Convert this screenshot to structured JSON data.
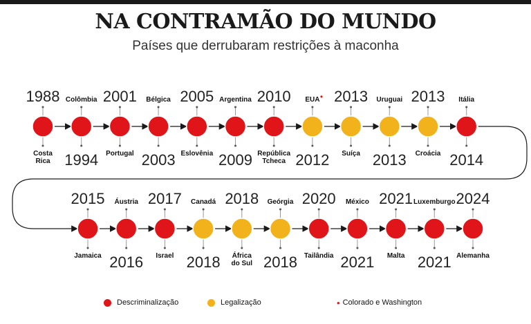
{
  "title": "NA CONTRAMÃO DO MUNDO",
  "subtitle": "Países que derrubaram restrições à maconha",
  "colors": {
    "descrim": "#e0151a",
    "legal": "#f2b21b"
  },
  "rows": [
    [
      {
        "year": "1988",
        "label": [
          "Costa",
          "Rica"
        ],
        "type": "descrim",
        "year_pos": "top"
      },
      {
        "year": "1994",
        "label": [
          "Colômbia"
        ],
        "type": "descrim",
        "year_pos": "bottom"
      },
      {
        "year": "2001",
        "label": [
          "Portugal"
        ],
        "type": "descrim",
        "year_pos": "top"
      },
      {
        "year": "2003",
        "label": [
          "Bélgica"
        ],
        "type": "descrim",
        "year_pos": "bottom"
      },
      {
        "year": "2005",
        "label": [
          "Eslovênia"
        ],
        "type": "descrim",
        "year_pos": "top"
      },
      {
        "year": "2009",
        "label": [
          "Argentina"
        ],
        "type": "descrim",
        "year_pos": "bottom"
      },
      {
        "year": "2010",
        "label": [
          "República",
          "Tcheca"
        ],
        "type": "descrim",
        "year_pos": "top"
      },
      {
        "year": "2012",
        "label": [
          "EUA"
        ],
        "type": "legal",
        "year_pos": "bottom",
        "star": true
      },
      {
        "year": "2013",
        "label": [
          "Suíça"
        ],
        "type": "legal",
        "year_pos": "top"
      },
      {
        "year": "2013",
        "label": [
          "Uruguai"
        ],
        "type": "legal",
        "year_pos": "bottom"
      },
      {
        "year": "2013",
        "label": [
          "Croácia"
        ],
        "type": "legal",
        "year_pos": "top"
      },
      {
        "year": "2014",
        "label": [
          "Itália"
        ],
        "type": "descrim",
        "year_pos": "bottom"
      }
    ],
    [
      {
        "year": "2015",
        "label": [
          "Jamaica"
        ],
        "type": "descrim",
        "year_pos": "top"
      },
      {
        "year": "2016",
        "label": [
          "Áustria"
        ],
        "type": "descrim",
        "year_pos": "bottom"
      },
      {
        "year": "2017",
        "label": [
          "Israel"
        ],
        "type": "descrim",
        "year_pos": "top"
      },
      {
        "year": "2018",
        "label": [
          "Canadá"
        ],
        "type": "legal",
        "year_pos": "bottom"
      },
      {
        "year": "2018",
        "label": [
          "África",
          "do Sul"
        ],
        "type": "legal",
        "year_pos": "top"
      },
      {
        "year": "2018",
        "label": [
          "Geórgia"
        ],
        "type": "legal",
        "year_pos": "bottom"
      },
      {
        "year": "2020",
        "label": [
          "Tailândia"
        ],
        "type": "descrim",
        "year_pos": "top"
      },
      {
        "year": "2021",
        "label": [
          "México"
        ],
        "type": "descrim",
        "year_pos": "bottom"
      },
      {
        "year": "2021",
        "label": [
          "Malta"
        ],
        "type": "descrim",
        "year_pos": "top"
      },
      {
        "year": "2021",
        "label": [
          "Luxemburgo"
        ],
        "type": "descrim",
        "year_pos": "bottom"
      },
      {
        "year": "2024",
        "label": [
          "Alemanha"
        ],
        "type": "descrim",
        "year_pos": "top"
      }
    ]
  ],
  "legend": {
    "descrim_label": "Descriminalização",
    "legal_label": "Legalização",
    "star_symbol": "•",
    "star_label": "Colorado e Washington"
  }
}
